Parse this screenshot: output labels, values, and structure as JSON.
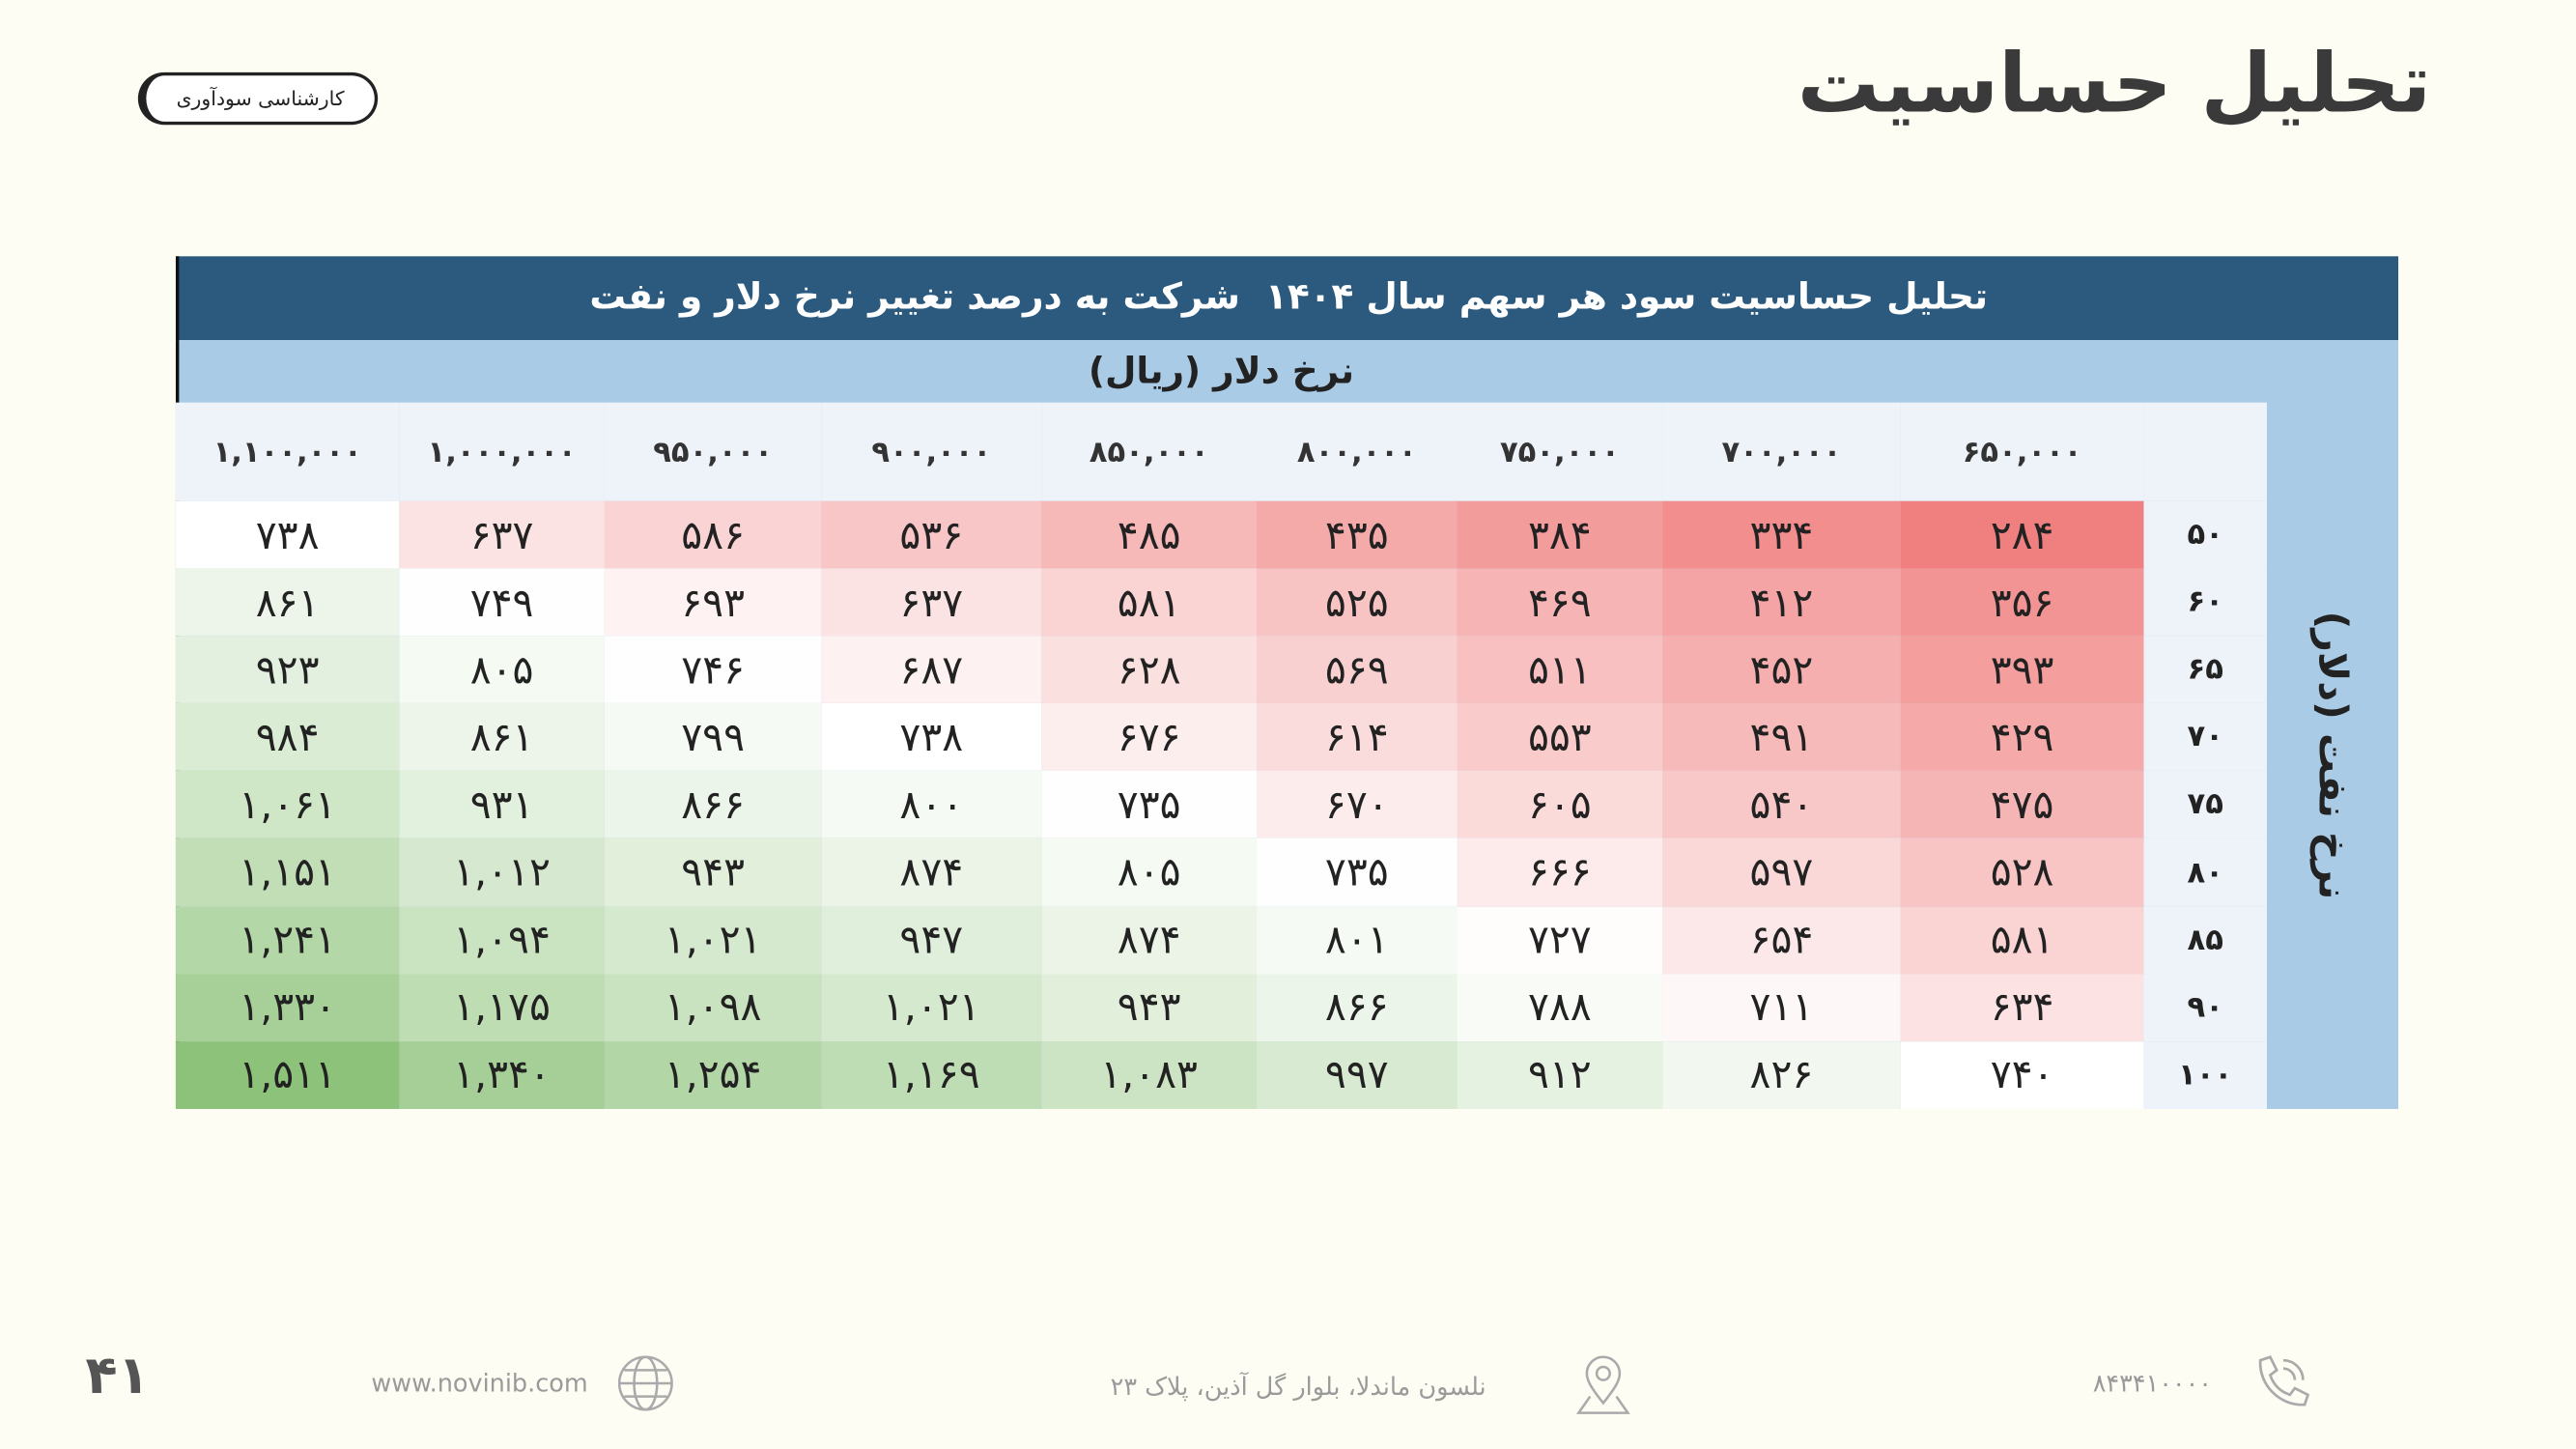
{
  "header": {
    "title": "تحلیل حساسیت",
    "badge": "کارشناسی سودآوری"
  },
  "table": {
    "title": "تحلیل حساسیت سود هر سهم سال ۱۴۰۴  شرکت به درصد تغییر نرخ دلار و نفت",
    "column_group_label": "نرخ دلار (ریال)",
    "row_group_label": "نرخ نفت (دلار)",
    "columns": [
      "۶۵۰,۰۰۰",
      "۷۰۰,۰۰۰",
      "۷۵۰,۰۰۰",
      "۸۰۰,۰۰۰",
      "۸۵۰,۰۰۰",
      "۹۰۰,۰۰۰",
      "۹۵۰,۰۰۰",
      "۱,۰۰۰,۰۰۰",
      "۱,۱۰۰,۰۰۰"
    ],
    "rows": [
      {
        "label": "۵۰",
        "cells": [
          "۲۸۴",
          "۳۳۴",
          "۳۸۴",
          "۴۳۵",
          "۴۸۵",
          "۵۳۶",
          "۵۸۶",
          "۶۳۷",
          "۷۳۸"
        ]
      },
      {
        "label": "۶۰",
        "cells": [
          "۳۵۶",
          "۴۱۲",
          "۴۶۹",
          "۵۲۵",
          "۵۸۱",
          "۶۳۷",
          "۶۹۳",
          "۷۴۹",
          "۸۶۱"
        ]
      },
      {
        "label": "۶۵",
        "cells": [
          "۳۹۳",
          "۴۵۲",
          "۵۱۱",
          "۵۶۹",
          "۶۲۸",
          "۶۸۷",
          "۷۴۶",
          "۸۰۵",
          "۹۲۳"
        ]
      },
      {
        "label": "۷۰",
        "cells": [
          "۴۲۹",
          "۴۹۱",
          "۵۵۳",
          "۶۱۴",
          "۶۷۶",
          "۷۳۸",
          "۷۹۹",
          "۸۶۱",
          "۹۸۴"
        ]
      },
      {
        "label": "۷۵",
        "cells": [
          "۴۷۵",
          "۵۴۰",
          "۶۰۵",
          "۶۷۰",
          "۷۳۵",
          "۸۰۰",
          "۸۶۶",
          "۹۳۱",
          "۱,۰۶۱"
        ]
      },
      {
        "label": "۸۰",
        "cells": [
          "۵۲۸",
          "۵۹۷",
          "۶۶۶",
          "۷۳۵",
          "۸۰۵",
          "۸۷۴",
          "۹۴۳",
          "۱,۰۱۲",
          "۱,۱۵۱"
        ]
      },
      {
        "label": "۸۵",
        "cells": [
          "۵۸۱",
          "۶۵۴",
          "۷۲۷",
          "۸۰۱",
          "۸۷۴",
          "۹۴۷",
          "۱,۰۲۱",
          "۱,۰۹۴",
          "۱,۲۴۱"
        ]
      },
      {
        "label": "۹۰",
        "cells": [
          "۶۳۴",
          "۷۱۱",
          "۷۸۸",
          "۸۶۶",
          "۹۴۳",
          "۱,۰۲۱",
          "۱,۰۹۸",
          "۱,۱۷۵",
          "۱,۳۳۰"
        ]
      },
      {
        "label": "۱۰۰",
        "cells": [
          "۷۴۰",
          "۸۲۶",
          "۹۱۲",
          "۹۹۷",
          "۱,۰۸۳",
          "۱,۱۶۹",
          "۱,۲۵۴",
          "۱,۳۴۰",
          "۱,۵۱۱"
        ]
      }
    ]
  },
  "footer": {
    "page": "۴۱",
    "website": "www.novinib.com",
    "address": "نلسون ماندلا، بلوار گل آذین، پلاک ۲۳",
    "phone": "۸۴۳۴۱۰۰۰۰"
  }
}
